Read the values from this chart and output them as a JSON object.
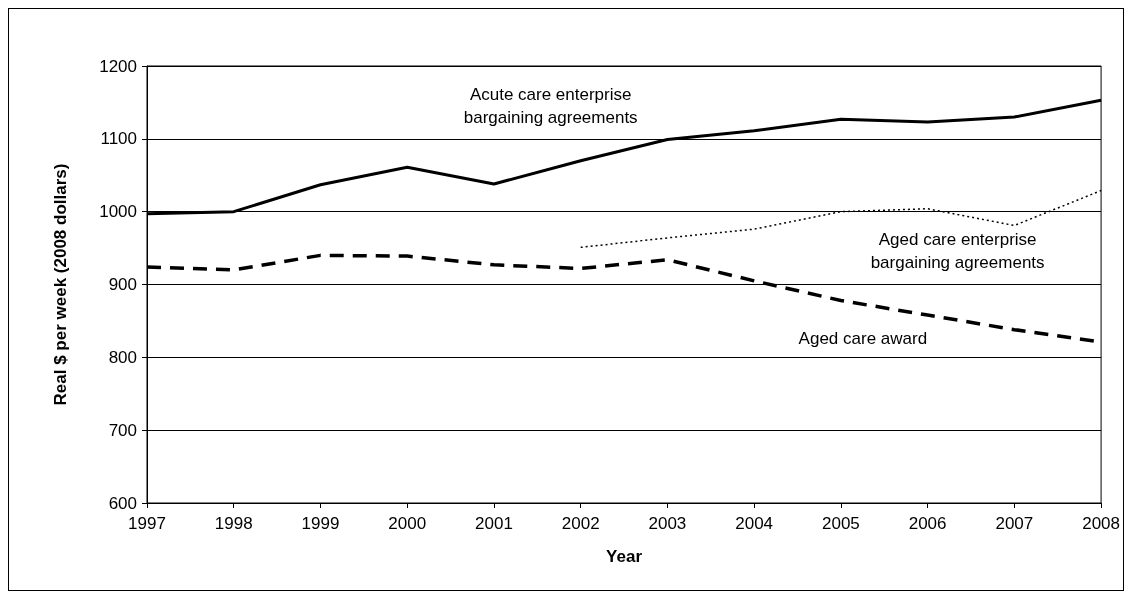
{
  "chart_data": {
    "type": "line",
    "xlabel": "Year",
    "ylabel": "Real $ per week (2008 dollars)",
    "categories": [
      "1997",
      "1998",
      "1999",
      "2000",
      "2001",
      "2002",
      "2003",
      "2004",
      "2005",
      "2006",
      "2007",
      "2008"
    ],
    "series": [
      {
        "name": "Acute care enterprise\nbargaining agreements",
        "color": "#000000",
        "line_style": "solid",
        "values": [
          997,
          1000,
          1037,
          1061,
          1038,
          1070,
          1099,
          1111,
          1127,
          1123,
          1130,
          1153
        ]
      },
      {
        "name": "Aged care enterprise\nbargaining agreements",
        "color": "#000000",
        "line_style": "dotted",
        "values": [
          null,
          null,
          null,
          null,
          null,
          951,
          964,
          976,
          1000,
          1004,
          981,
          1029
        ]
      },
      {
        "name": "Aged care award",
        "color": "#000000",
        "line_style": "dashed",
        "values": [
          924,
          920,
          940,
          939,
          927,
          922,
          934,
          905,
          878,
          858,
          838,
          821
        ]
      }
    ],
    "ylim": [
      600,
      1200
    ],
    "yticks": [
      600,
      700,
      800,
      900,
      1000,
      1100,
      1200
    ],
    "grid": "y",
    "marker": "none"
  }
}
